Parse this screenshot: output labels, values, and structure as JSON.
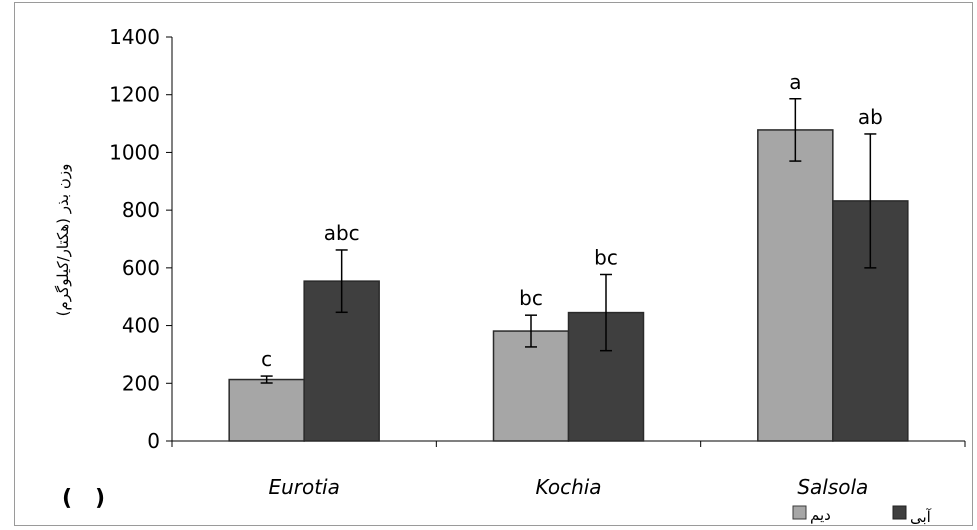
{
  "chart_data": {
    "type": "bar",
    "title": "",
    "xlabel": "",
    "ylabel": "وزن بذر (هکتار/کیلوگرم)",
    "ylim": [
      0,
      1400
    ],
    "yticks": [
      0,
      200,
      400,
      600,
      800,
      1000,
      1200,
      1400
    ],
    "categories": [
      "Eurotia",
      "Kochia",
      "Salsola"
    ],
    "series": [
      {
        "name": "دیم",
        "color": "#a6a6a6",
        "values": [
          213,
          381,
          1078
        ],
        "error": [
          12,
          55,
          108
        ],
        "labels": [
          "c",
          "bc",
          "a"
        ]
      },
      {
        "name": "آبی",
        "color": "#3f3f3f",
        "values": [
          554,
          445,
          832
        ],
        "error": [
          108,
          132,
          232
        ],
        "labels": [
          "abc",
          "bc",
          "ab"
        ]
      }
    ],
    "legend_position": "bottom-right",
    "grid": false
  },
  "panel_label": "(   )"
}
